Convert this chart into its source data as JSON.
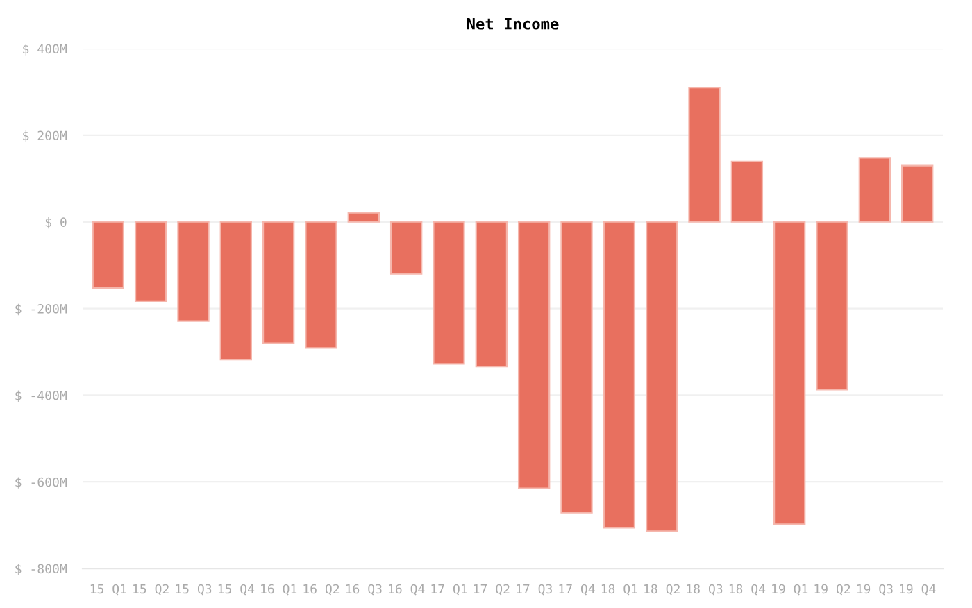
{
  "chart_data": {
    "type": "bar",
    "title": "Net Income",
    "categories": [
      "15 Q1",
      "15 Q2",
      "15 Q3",
      "15 Q4",
      "16 Q1",
      "16 Q2",
      "16 Q3",
      "16 Q4",
      "17 Q1",
      "17 Q2",
      "17 Q3",
      "17 Q4",
      "18 Q1",
      "18 Q2",
      "18 Q3",
      "18 Q4",
      "19 Q1",
      "19 Q2",
      "19 Q3",
      "19 Q4"
    ],
    "values": [
      -153,
      -183,
      -229,
      -318,
      -280,
      -291,
      21,
      -120,
      -328,
      -334,
      -615,
      -671,
      -706,
      -714,
      310,
      139,
      -698,
      -387,
      148,
      130
    ],
    "color": "#e8705f",
    "ylim": [
      -800,
      400
    ],
    "yticks": [
      {
        "value": -800,
        "label": "$ -800M"
      },
      {
        "value": -600,
        "label": "$ -600M"
      },
      {
        "value": -400,
        "label": "$ -400M"
      },
      {
        "value": -200,
        "label": "$ -200M"
      },
      {
        "value": 0,
        "label": "$ 0"
      },
      {
        "value": 200,
        "label": "$ 200M"
      },
      {
        "value": 400,
        "label": "$ 400M"
      }
    ],
    "grid": "y"
  }
}
